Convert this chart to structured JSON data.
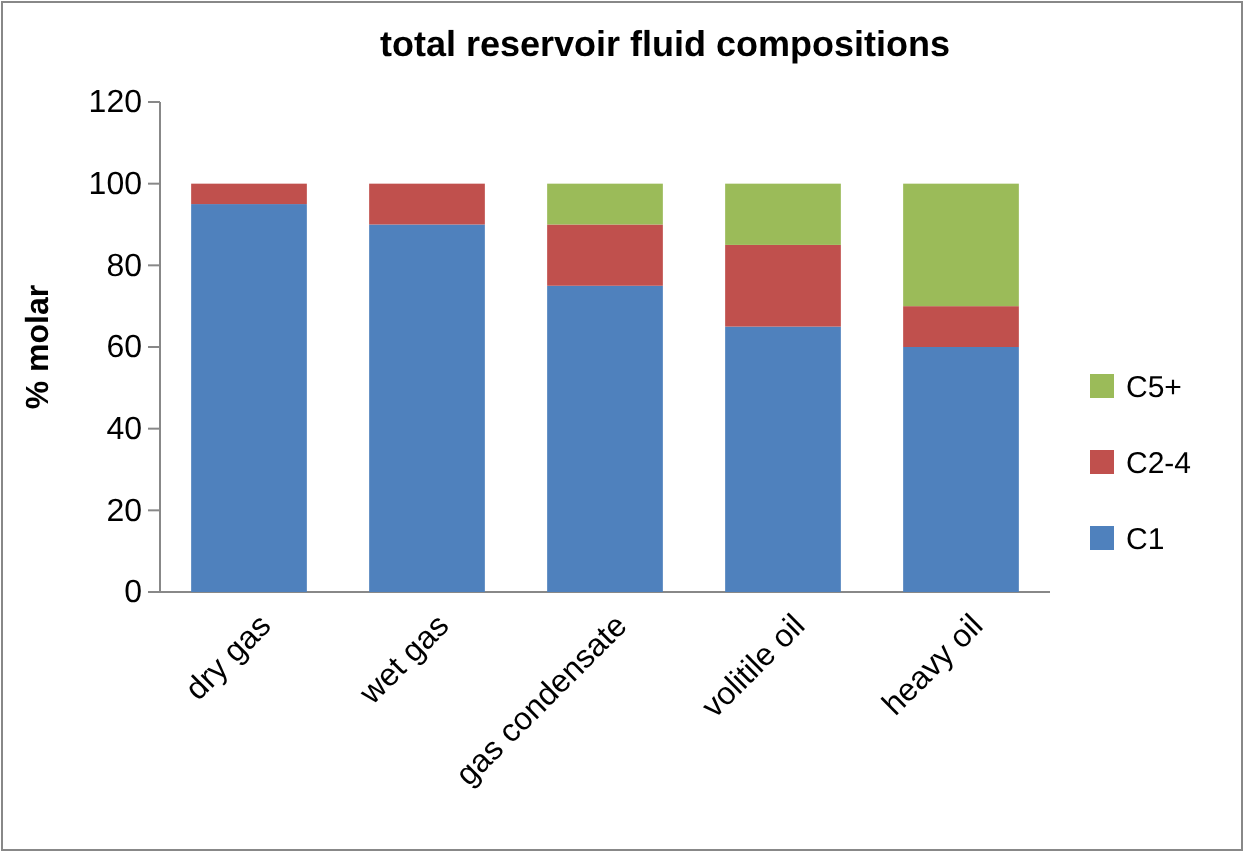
{
  "chart_data": {
    "type": "bar",
    "title": "total reservoir fluid compositions",
    "ylabel": "% molar",
    "categories": [
      "dry gas",
      "wet gas",
      "gas condensate",
      "volitile oil",
      "heavy oil"
    ],
    "stacked": true,
    "legend": "right",
    "grid": false,
    "ylim": [
      0,
      120
    ],
    "yticks": [
      0,
      20,
      40,
      60,
      80,
      100,
      120
    ],
    "series": [
      {
        "name": "C1",
        "color": "#4f81bd",
        "values": [
          95,
          90,
          75,
          65,
          60
        ]
      },
      {
        "name": "C2-4",
        "color": "#c0504d",
        "values": [
          5,
          10,
          15,
          20,
          10
        ]
      },
      {
        "name": "C5+",
        "color": "#9bbb59",
        "values": [
          0,
          0,
          10,
          15,
          30
        ]
      }
    ]
  }
}
